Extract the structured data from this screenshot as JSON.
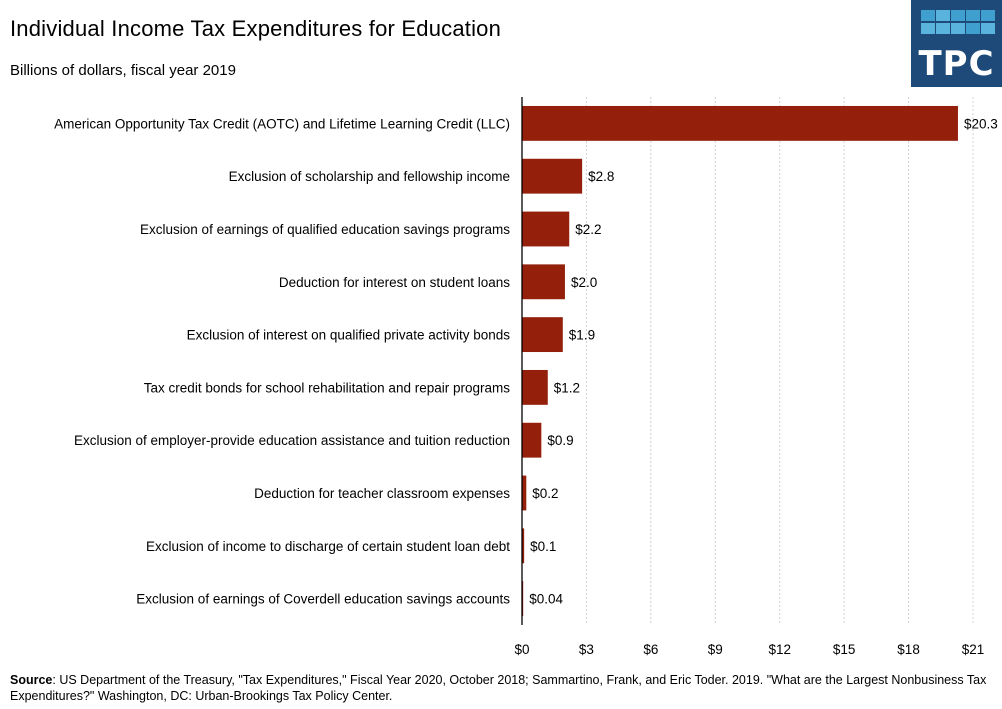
{
  "header": {
    "title": "Individual Income Tax Expenditures for Education",
    "subtitle": "Billions of dollars, fiscal year 2019"
  },
  "logo": {
    "text": "TPC",
    "background": "#1e4a7a",
    "square_colors": [
      "#3f9fcf",
      "#5ab3dc",
      "#3f9fcf",
      "#3f9fcf",
      "#3fa0cf",
      "#5ab3dc",
      "#5ab3dc",
      "#5ab3dc",
      "#3f9fcf",
      "#5ab3dc"
    ]
  },
  "source": {
    "label": "Source",
    "text": ": US Department of the Treasury, \"Tax Expenditures,\" Fiscal Year 2020, October 2018; Sammartino, Frank, and Eric Toder. 2019. \"What are the Largest Nonbusiness Tax Expenditures?\" Washington, DC: Urban-Brookings Tax Policy Center."
  },
  "chart_data": {
    "type": "bar",
    "orientation": "horizontal",
    "title": "Individual Income Tax Expenditures for Education",
    "subtitle": "Billions of dollars, fiscal year 2019",
    "xlabel": "",
    "ylabel": "",
    "xlim": [
      0,
      21
    ],
    "x_ticks": [
      0,
      3,
      6,
      9,
      12,
      15,
      18,
      21
    ],
    "x_tick_labels": [
      "$0",
      "$3",
      "$6",
      "$9",
      "$12",
      "$15",
      "$18",
      "$21"
    ],
    "grid": "vertical dotted",
    "bar_color": "#94200c",
    "categories": [
      "American Opportunity Tax Credit (AOTC) and Lifetime Learning Credit (LLC)",
      "Exclusion of scholarship and fellowship income",
      "Exclusion of earnings of qualified education savings programs",
      "Deduction for interest on student loans",
      "Exclusion of interest on qualified private activity bonds",
      "Tax credit bonds for school rehabilitation and repair programs",
      "Exclusion of employer-provide education assistance and tuition reduction",
      "Deduction for teacher classroom expenses",
      "Exclusion of income to discharge of certain student loan debt",
      "Exclusion of earnings of Coverdell education savings accounts"
    ],
    "values": [
      20.3,
      2.8,
      2.2,
      2.0,
      1.9,
      1.2,
      0.9,
      0.2,
      0.1,
      0.04
    ],
    "value_labels": [
      "$20.3",
      "$2.8",
      "$2.2",
      "$2.0",
      "$1.9",
      "$1.2",
      "$0.9",
      "$0.2",
      "$0.1",
      "$0.04"
    ]
  }
}
